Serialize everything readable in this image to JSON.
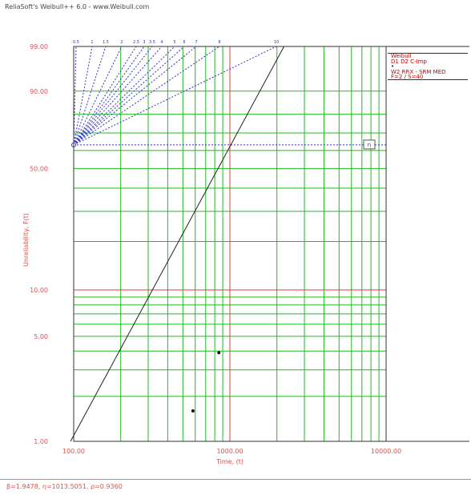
{
  "header": {
    "text": "ReliaSoft's Weibull++ 6.0 - www.Weibull.com"
  },
  "legend": {
    "title": "Weibull",
    "line1": "D1 D2 C-Imp",
    "marker_label": "•",
    "line2": "W2 RRX - SRM MED",
    "line3": "F=2 / S=40"
  },
  "status": {
    "text": "β=1.9478, η=1013.5051, ρ=0.9360"
  },
  "colors": {
    "grid": "#22bb22",
    "axis_text": "#d9534f",
    "highlight": "#e03c3c",
    "fit_line": "#222222",
    "slope_guides": "#3333cc"
  },
  "chart_data": {
    "type": "scatter",
    "title": "",
    "xlabel": "Time, (t)",
    "ylabel": "Unreliability, F(t)",
    "x_scale": "log",
    "y_scale": "weibull",
    "xlim": [
      100,
      10000
    ],
    "ylim": [
      1,
      99
    ],
    "x_ticks": [
      "100.00",
      "1000.00",
      "10000.00"
    ],
    "y_ticks": [
      {
        "v": 99,
        "label": "99.00"
      },
      {
        "v": 90,
        "label": "90.00"
      },
      {
        "v": 50,
        "label": "50.00"
      },
      {
        "v": 10,
        "label": "10.00"
      },
      {
        "v": 5,
        "label": "5.00"
      },
      {
        "v": 1,
        "label": "1.00"
      }
    ],
    "x_grid": [
      100,
      200,
      300,
      400,
      500,
      600,
      700,
      800,
      900,
      1000,
      2000,
      3000,
      4000,
      5000,
      6000,
      7000,
      8000,
      9000,
      10000
    ],
    "y_grid": [
      1,
      2,
      3,
      4,
      5,
      6,
      7,
      8,
      9,
      10,
      20,
      30,
      40,
      50,
      60,
      70,
      80,
      90,
      99
    ],
    "highlight_x": 1000,
    "highlight_y": 10,
    "fit": {
      "beta": 1.9478,
      "eta": 1013.5051
    },
    "points": [
      {
        "x": 580,
        "y": 1.6
      },
      {
        "x": 850,
        "y": 3.9
      }
    ],
    "slope_guides": {
      "origin_y": 63.2,
      "top_labels": [
        "0.5",
        "1",
        "1.5",
        "2",
        "2.5",
        "3",
        "3.5",
        "4",
        "5",
        "6",
        "7",
        "8",
        "10"
      ]
    },
    "eta_marker_label": "η"
  }
}
